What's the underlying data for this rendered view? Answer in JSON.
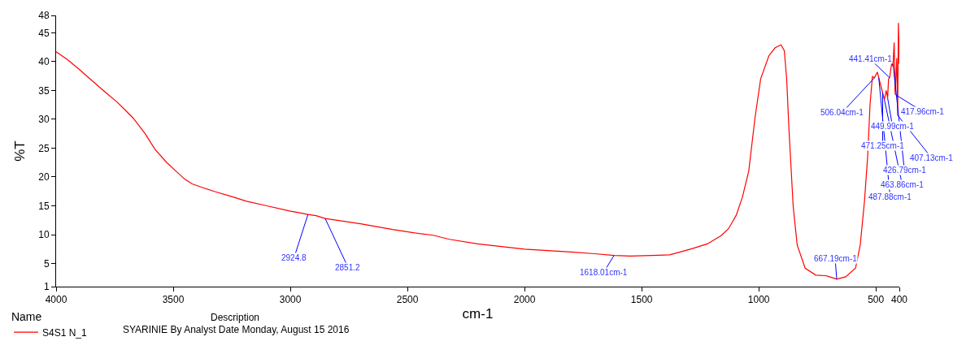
{
  "chart_data": {
    "type": "line",
    "xlabel": "cm-1",
    "ylabel": "%T",
    "legend_title": "Name",
    "xlim": [
      4000,
      400
    ],
    "xticks": [
      4000,
      3500,
      3000,
      2500,
      2000,
      1500,
      1000,
      500,
      400
    ],
    "ylim": [
      1,
      48
    ],
    "yticks": [
      1,
      5,
      10,
      15,
      20,
      25,
      30,
      35,
      40,
      45,
      48
    ],
    "legend": "bottom left",
    "marker": "none",
    "line_style": "solid",
    "series": [
      {
        "name": "S4S1 N_1",
        "color": "#ff0000",
        "x": [
          4000,
          3950,
          3900,
          3844,
          3790,
          3740,
          3700,
          3671,
          3620,
          3578,
          3530,
          3488,
          3450,
          3419,
          3370,
          3325,
          3250,
          3187,
          3100,
          3003,
          2960,
          2924.8,
          2890,
          2851.2,
          2700,
          2564,
          2450,
          2390,
          2321,
          2200,
          2000,
          1802,
          1700,
          1618.01,
          1550,
          1456,
          1380,
          1283,
          1220,
          1162,
          1130,
          1110,
          1096,
          1070,
          1043,
          1016,
          992,
          957,
          930,
          905,
          891,
          881,
          871,
          853,
          836,
          802,
          757,
          715,
          690,
          667.19,
          629,
          587,
          567,
          549,
          535,
          525,
          515,
          506.04,
          494,
          487.88,
          480,
          471.25,
          463.86,
          456,
          449.99,
          446,
          441.41,
          432,
          428,
          426.79,
          422,
          417.96,
          411,
          407.13,
          404,
          400
        ],
        "values": [
          41.7,
          40.3,
          38.6,
          36.6,
          34.7,
          33.0,
          31.4,
          30.2,
          27.5,
          24.8,
          22.6,
          21.0,
          19.6,
          18.8,
          18.1,
          17.5,
          16.6,
          15.8,
          15.0,
          14.1,
          13.8,
          13.5,
          13.3,
          12.8,
          11.9,
          10.9,
          10.2,
          9.9,
          9.2,
          8.4,
          7.5,
          7.0,
          6.7,
          6.4,
          6.3,
          6.4,
          6.5,
          7.6,
          8.4,
          9.8,
          11.0,
          12.4,
          13.4,
          16.5,
          21.0,
          30.3,
          37.0,
          41.0,
          42.4,
          42.9,
          41.9,
          37.0,
          28.1,
          14.8,
          8.2,
          4.2,
          3.0,
          2.9,
          2.6,
          2.3,
          2.7,
          4.2,
          8.2,
          15.7,
          23.7,
          32.6,
          37.4,
          37.2,
          38.2,
          37.2,
          36.0,
          34.6,
          33.4,
          35.0,
          33.7,
          37.0,
          37.2,
          39.9,
          39.2,
          39.6,
          43.3,
          34.3,
          40.6,
          30.7,
          46.7,
          39.6
        ]
      }
    ],
    "annotations": [
      {
        "text": "2924.8",
        "x": 2924.8,
        "y": 13.5
      },
      {
        "text": "2851.2",
        "x": 2851.2,
        "y": 12.8
      },
      {
        "text": "1618.01cm-1",
        "x": 1618.01,
        "y": 6.4
      },
      {
        "text": "667.19cm-1",
        "x": 667.19,
        "y": 2.3
      },
      {
        "text": "441.41cm-1",
        "x": 441.41,
        "y": 37.2
      },
      {
        "text": "506.04cm-1",
        "x": 506.04,
        "y": 37.2
      },
      {
        "text": "449.99cm-1",
        "x": 449.99,
        "y": 33.7
      },
      {
        "text": "471.25cm-1",
        "x": 471.25,
        "y": 34.6
      },
      {
        "text": "487.88cm-1",
        "x": 487.88,
        "y": 37.2
      },
      {
        "text": "463.86cm-1",
        "x": 463.86,
        "y": 33.4
      },
      {
        "text": "426.79cm-1",
        "x": 426.79,
        "y": 39.6
      },
      {
        "text": "417.96cm-1",
        "x": 417.96,
        "y": 34.3
      },
      {
        "text": "407.13cm-1",
        "x": 407.13,
        "y": 30.7
      },
      "Description",
      "SYARINIE By Analyst Date Monday, August 15 2016"
    ]
  }
}
